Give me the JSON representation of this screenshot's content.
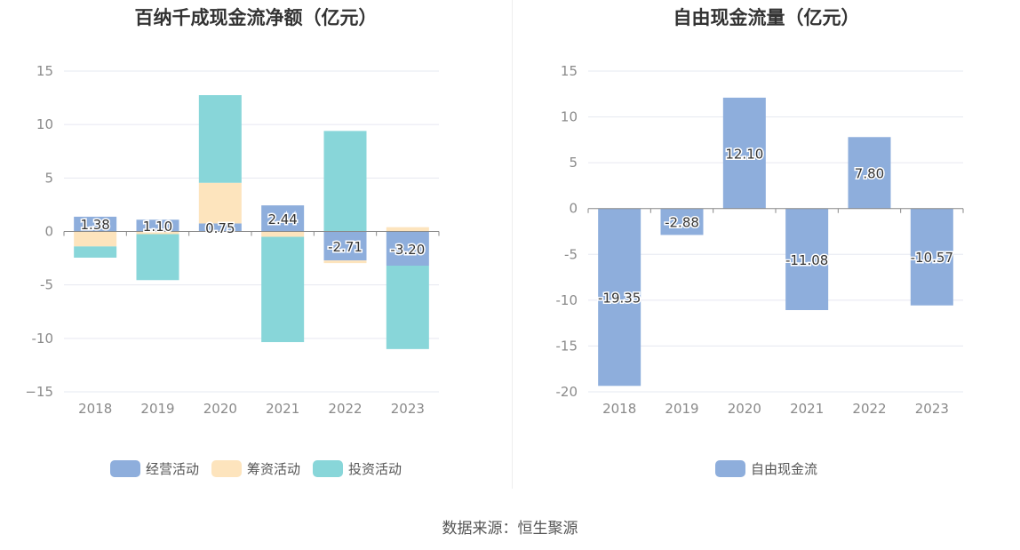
{
  "source": "数据来源：恒生聚源",
  "colors": {
    "operating": "#8eaedc",
    "financing": "#fde4bd",
    "investing": "#88d6d9",
    "free_cash_flow": "#8eaedc"
  },
  "chart_data": [
    {
      "id": "left",
      "type": "bar",
      "stacked": true,
      "title": "百纳千成现金流净额（亿元）",
      "categories": [
        "2018",
        "2019",
        "2020",
        "2021",
        "2022",
        "2023"
      ],
      "ylim": [
        -15,
        15
      ],
      "yticks": [
        15,
        10,
        5,
        0,
        -5,
        -10,
        -15
      ],
      "ytick_labels": [
        "15",
        "10",
        "5",
        "0",
        "-5",
        "-10",
        "−15"
      ],
      "grid": true,
      "legend_position": "bottom",
      "series": [
        {
          "key": "operating",
          "name": "经营活动",
          "color": "#8eaedc",
          "values": [
            1.38,
            1.1,
            0.75,
            2.44,
            -2.71,
            -3.2
          ],
          "labels": [
            "1.38",
            "1.10",
            "0.75",
            "2.44",
            "-2.71",
            "-3.20"
          ]
        },
        {
          "key": "financing",
          "name": "筹资活动",
          "color": "#fde4bd",
          "values": [
            -1.4,
            -0.25,
            3.8,
            -0.5,
            -0.25,
            0.4
          ]
        },
        {
          "key": "investing",
          "name": "投资活动",
          "color": "#88d6d9",
          "values": [
            -1.05,
            -4.3,
            8.2,
            -9.85,
            9.4,
            -7.8
          ]
        }
      ]
    },
    {
      "id": "right",
      "type": "bar",
      "title": "自由现金流量（亿元）",
      "categories": [
        "2018",
        "2019",
        "2020",
        "2021",
        "2022",
        "2023"
      ],
      "ylim": [
        -20,
        15
      ],
      "yticks": [
        15,
        10,
        5,
        0,
        -5,
        -10,
        -15,
        -20
      ],
      "ytick_labels": [
        "15",
        "10",
        "5",
        "0",
        "-5",
        "-10",
        "-15",
        "-20"
      ],
      "grid": true,
      "legend_position": "bottom",
      "series": [
        {
          "key": "free_cash_flow",
          "name": "自由现金流",
          "color": "#8eaedc",
          "values": [
            -19.35,
            -2.88,
            12.1,
            -11.08,
            7.8,
            -10.57
          ],
          "labels": [
            "-19.35",
            "-2.88",
            "12.10",
            "-11.08",
            "7.80",
            "-10.57"
          ]
        }
      ]
    }
  ]
}
